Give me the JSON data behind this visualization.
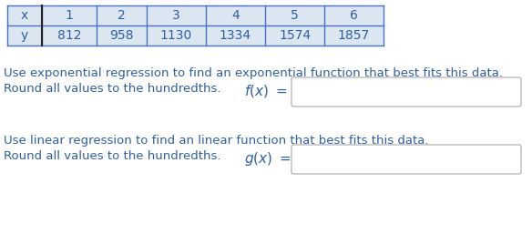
{
  "x_values": [
    1,
    2,
    3,
    4,
    5,
    6
  ],
  "y_values": [
    812,
    958,
    1130,
    1334,
    1574,
    1857
  ],
  "table_border_color": "#4472c4",
  "table_fill_color": "#dce6f1",
  "text_color": "#2e5fa3",
  "bg_color": "#ffffff",
  "line1_exp": "Use exponential regression to find an exponential function that best fits this data.",
  "line2_exp": "Round all values to the hundredths.",
  "line1_lin": "Use linear regression to find an linear function that best fits this data.",
  "line2_lin": "Round all values to the hundredths.",
  "font_size_table": 10,
  "font_size_text": 9.5,
  "font_size_math": 11
}
